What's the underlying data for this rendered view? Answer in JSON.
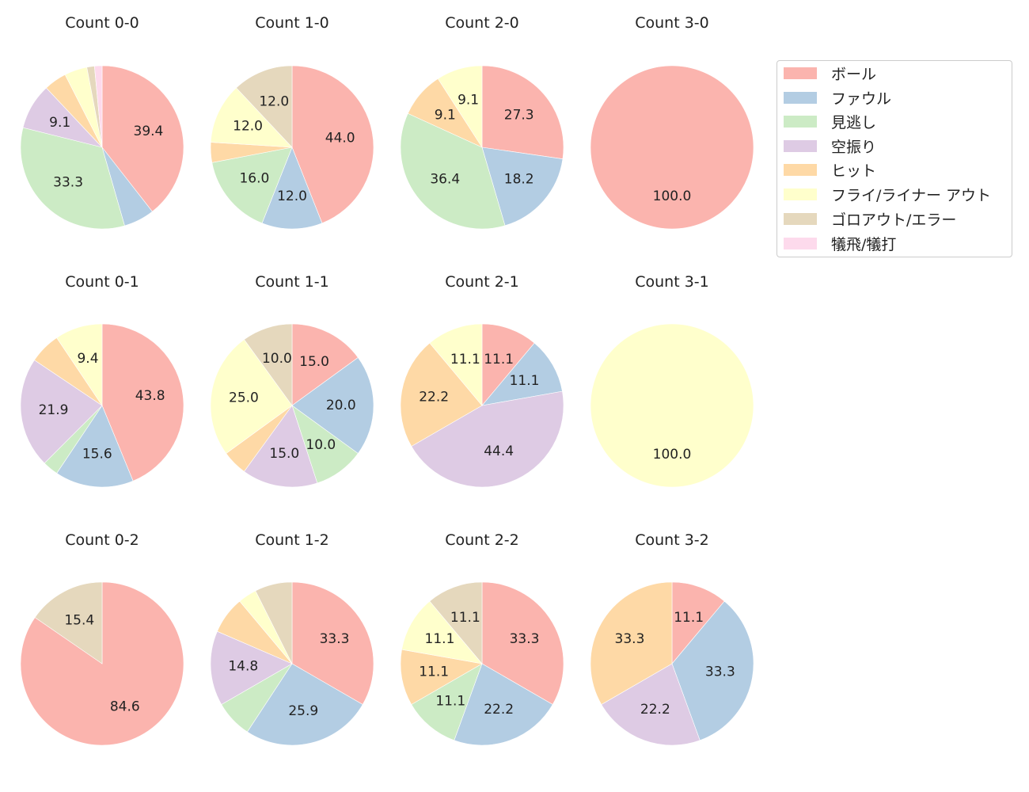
{
  "legend": [
    {
      "label": "ボール",
      "color": "#fbb4ae"
    },
    {
      "label": "ファウル",
      "color": "#b3cde3"
    },
    {
      "label": "見逃し",
      "color": "#ccebc5"
    },
    {
      "label": "空振り",
      "color": "#decbe4"
    },
    {
      "label": "ヒット",
      "color": "#fed9a6"
    },
    {
      "label": "フライ/ライナー アウト",
      "color": "#ffffcc"
    },
    {
      "label": "ゴロアウト/エラー",
      "color": "#e5d8bd"
    },
    {
      "label": "犠飛/犠打",
      "color": "#fddaec"
    }
  ],
  "chart_data": [
    {
      "type": "pie",
      "title": "Count 0-0",
      "categories": [
        "ボール",
        "ファウル",
        "見逃し",
        "空振り",
        "ヒット",
        "フライ/ライナー アウト",
        "ゴロアウト/エラー",
        "犠飛/犠打"
      ],
      "values": [
        39.4,
        6.1,
        33.3,
        9.1,
        4.5,
        4.5,
        1.5,
        1.5
      ],
      "labels_shown": [
        "39.4",
        "",
        "33.3",
        "9.1",
        "",
        "",
        "",
        ""
      ]
    },
    {
      "type": "pie",
      "title": "Count 1-0",
      "categories": [
        "ボール",
        "ファウル",
        "見逃し",
        "空振り",
        "ヒット",
        "フライ/ライナー アウト",
        "ゴロアウト/エラー",
        "犠飛/犠打"
      ],
      "values": [
        44.0,
        12.0,
        16.0,
        0,
        4.0,
        12.0,
        12.0,
        0
      ],
      "labels_shown": [
        "44.0",
        "12.0",
        "16.0",
        "",
        "",
        "12.0",
        "12.0",
        ""
      ]
    },
    {
      "type": "pie",
      "title": "Count 2-0",
      "categories": [
        "ボール",
        "ファウル",
        "見逃し",
        "空振り",
        "ヒット",
        "フライ/ライナー アウト",
        "ゴロアウト/エラー",
        "犠飛/犠打"
      ],
      "values": [
        27.3,
        18.2,
        36.4,
        0,
        9.1,
        9.1,
        0,
        0
      ],
      "labels_shown": [
        "27.3",
        "18.2",
        "36.4",
        "",
        "9.1",
        "9.1",
        "",
        ""
      ]
    },
    {
      "type": "pie",
      "title": "Count 3-0",
      "categories": [
        "ボール",
        "ファウル",
        "見逃し",
        "空振り",
        "ヒット",
        "フライ/ライナー アウト",
        "ゴロアウト/エラー",
        "犠飛/犠打"
      ],
      "values": [
        100.0,
        0,
        0,
        0,
        0,
        0,
        0,
        0
      ],
      "labels_shown": [
        "100.0",
        "",
        "",
        "",
        "",
        "",
        "",
        ""
      ]
    },
    {
      "type": "pie",
      "title": "Count 0-1",
      "categories": [
        "ボール",
        "ファウル",
        "見逃し",
        "空振り",
        "ヒット",
        "フライ/ライナー アウト",
        "ゴロアウト/エラー",
        "犠飛/犠打"
      ],
      "values": [
        43.8,
        15.6,
        3.1,
        21.9,
        6.2,
        9.4,
        0,
        0
      ],
      "labels_shown": [
        "43.8",
        "15.6",
        "",
        "21.9",
        "",
        "9.4",
        "",
        ""
      ]
    },
    {
      "type": "pie",
      "title": "Count 1-1",
      "categories": [
        "ボール",
        "ファウル",
        "見逃し",
        "空振り",
        "ヒット",
        "フライ/ライナー アウト",
        "ゴロアウト/エラー",
        "犠飛/犠打"
      ],
      "values": [
        15.0,
        20.0,
        10.0,
        15.0,
        5.0,
        25.0,
        10.0,
        0
      ],
      "labels_shown": [
        "15.0",
        "20.0",
        "10.0",
        "15.0",
        "",
        "25.0",
        "10.0",
        ""
      ]
    },
    {
      "type": "pie",
      "title": "Count 2-1",
      "categories": [
        "ボール",
        "ファウル",
        "見逃し",
        "空振り",
        "ヒット",
        "フライ/ライナー アウト",
        "ゴロアウト/エラー",
        "犠飛/犠打"
      ],
      "values": [
        11.1,
        11.1,
        0,
        44.4,
        22.2,
        11.1,
        0,
        0
      ],
      "labels_shown": [
        "11.1",
        "11.1",
        "",
        "44.4",
        "22.2",
        "11.1",
        "",
        ""
      ]
    },
    {
      "type": "pie",
      "title": "Count 3-1",
      "categories": [
        "ボール",
        "ファウル",
        "見逃し",
        "空振り",
        "ヒット",
        "フライ/ライナー アウト",
        "ゴロアウト/エラー",
        "犠飛/犠打"
      ],
      "values": [
        0,
        0,
        0,
        0,
        0,
        100.0,
        0,
        0
      ],
      "labels_shown": [
        "",
        "",
        "",
        "",
        "",
        "100.0",
        "",
        ""
      ]
    },
    {
      "type": "pie",
      "title": "Count 0-2",
      "categories": [
        "ボール",
        "ファウル",
        "見逃し",
        "空振り",
        "ヒット",
        "フライ/ライナー アウト",
        "ゴロアウト/エラー",
        "犠飛/犠打"
      ],
      "values": [
        84.6,
        0,
        0,
        0,
        0,
        0,
        15.4,
        0
      ],
      "labels_shown": [
        "84.6",
        "",
        "",
        "",
        "",
        "",
        "15.4",
        ""
      ]
    },
    {
      "type": "pie",
      "title": "Count 1-2",
      "categories": [
        "ボール",
        "ファウル",
        "見逃し",
        "空振り",
        "ヒット",
        "フライ/ライナー アウト",
        "ゴロアウト/エラー",
        "犠飛/犠打"
      ],
      "values": [
        33.3,
        25.9,
        7.4,
        14.8,
        7.4,
        3.7,
        7.4,
        0
      ],
      "labels_shown": [
        "33.3",
        "25.9",
        "",
        "14.8",
        "",
        "",
        "",
        ""
      ]
    },
    {
      "type": "pie",
      "title": "Count 2-2",
      "categories": [
        "ボール",
        "ファウル",
        "見逃し",
        "空振り",
        "ヒット",
        "フライ/ライナー アウト",
        "ゴロアウト/エラー",
        "犠飛/犠打"
      ],
      "values": [
        33.3,
        22.2,
        11.1,
        0,
        11.1,
        11.1,
        11.1,
        0
      ],
      "labels_shown": [
        "33.3",
        "22.2",
        "11.1",
        "",
        "11.1",
        "11.1",
        "11.1",
        ""
      ]
    },
    {
      "type": "pie",
      "title": "Count 3-2",
      "categories": [
        "ボール",
        "ファウル",
        "見逃し",
        "空振り",
        "ヒット",
        "フライ/ライナー アウト",
        "ゴロアウト/エラー",
        "犠飛/犠打"
      ],
      "values": [
        11.1,
        33.3,
        0,
        22.2,
        33.3,
        0,
        0,
        0
      ],
      "labels_shown": [
        "11.1",
        "33.3",
        "",
        "22.2",
        "33.3",
        "",
        "",
        ""
      ]
    }
  ]
}
